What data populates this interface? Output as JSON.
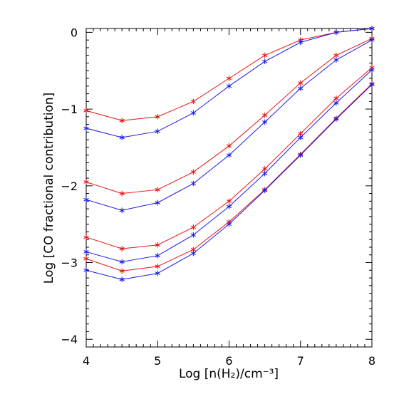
{
  "chart_data": {
    "type": "line",
    "title": "",
    "xlabel": "Log [n(H₂)/cm⁻³]",
    "ylabel": "Log [CO fractional contribution]",
    "xlim": [
      4,
      8
    ],
    "ylim": [
      -4.1,
      0.05
    ],
    "x_ticks": [
      "4",
      "5",
      "6",
      "7",
      "8"
    ],
    "y_ticks": [
      "0",
      "−1",
      "−2",
      "−3",
      "−4"
    ],
    "x_tick_values": [
      4,
      5,
      6,
      7,
      8
    ],
    "y_tick_values": [
      0,
      -1,
      -2,
      -3,
      -4
    ],
    "grid": false,
    "marker": "asterisk",
    "x": [
      4.0,
      4.5,
      5.0,
      5.5,
      6.0,
      6.5,
      7.0,
      7.5,
      8.0
    ],
    "series": [
      {
        "color": "#ee1111",
        "values": [
          -1.02,
          -1.15,
          -1.1,
          -0.9,
          -0.6,
          -0.3,
          -0.1,
          0.0,
          0.05
        ]
      },
      {
        "color": "#1a1aee",
        "values": [
          -1.25,
          -1.37,
          -1.29,
          -1.05,
          -0.7,
          -0.38,
          -0.13,
          0.0,
          0.05
        ]
      },
      {
        "color": "#ee1111",
        "values": [
          -1.95,
          -2.1,
          -2.05,
          -1.82,
          -1.48,
          -1.08,
          -0.66,
          -0.3,
          -0.08
        ]
      },
      {
        "color": "#1a1aee",
        "values": [
          -2.18,
          -2.32,
          -2.22,
          -1.97,
          -1.6,
          -1.17,
          -0.73,
          -0.36,
          -0.1
        ]
      },
      {
        "color": "#ee1111",
        "values": [
          -2.67,
          -2.82,
          -2.77,
          -2.54,
          -2.2,
          -1.78,
          -1.32,
          -0.86,
          -0.46
        ]
      },
      {
        "color": "#1a1aee",
        "values": [
          -2.86,
          -2.99,
          -2.91,
          -2.64,
          -2.27,
          -1.84,
          -1.37,
          -0.92,
          -0.49
        ]
      },
      {
        "color": "#ee1111",
        "values": [
          -2.95,
          -3.11,
          -3.05,
          -2.83,
          -2.47,
          -2.05,
          -1.59,
          -1.12,
          -0.67
        ]
      },
      {
        "color": "#1a1aee",
        "values": [
          -3.1,
          -3.22,
          -3.14,
          -2.88,
          -2.5,
          -2.06,
          -1.6,
          -1.13,
          -0.68
        ]
      }
    ]
  }
}
